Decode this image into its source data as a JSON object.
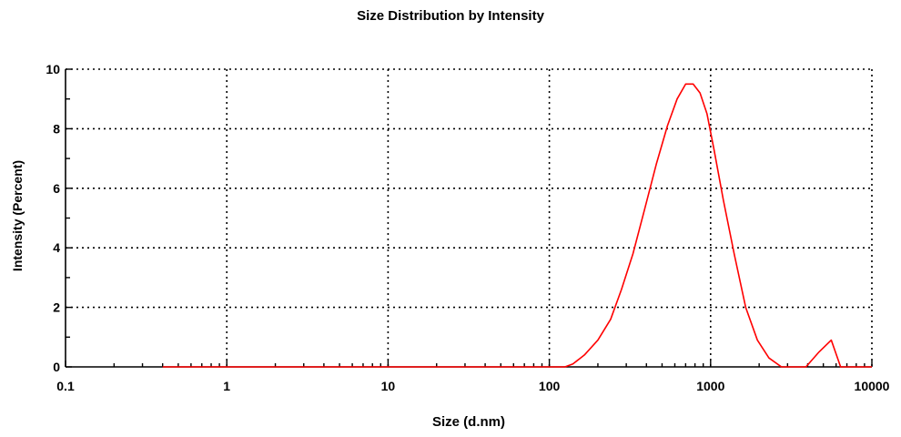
{
  "chart_data": {
    "type": "line",
    "title": "Size Distribution by Intensity",
    "xlabel": "Size (d.nm)",
    "ylabel": "Intensity (Percent)",
    "xscale": "log",
    "xlim": [
      0.1,
      10000
    ],
    "ylim": [
      0,
      10
    ],
    "x_ticks": [
      0.1,
      1,
      10,
      100,
      1000,
      10000
    ],
    "x_tick_labels": [
      "0.1",
      "1",
      "10",
      "100",
      "1000",
      "10000"
    ],
    "y_ticks": [
      0,
      2,
      4,
      6,
      8,
      10
    ],
    "y_tick_labels": [
      "0",
      "2",
      "4",
      "6",
      "8",
      "10"
    ],
    "grid": true,
    "legend": "none",
    "series": [
      {
        "color": "#ff0000",
        "points": [
          [
            0.4,
            0.0
          ],
          [
            1,
            0.0
          ],
          [
            10,
            0.0
          ],
          [
            100,
            0.0
          ],
          [
            125,
            0.0
          ],
          [
            140,
            0.1
          ],
          [
            165,
            0.4
          ],
          [
            200,
            0.9
          ],
          [
            240,
            1.6
          ],
          [
            280,
            2.6
          ],
          [
            330,
            3.8
          ],
          [
            390,
            5.3
          ],
          [
            460,
            6.8
          ],
          [
            540,
            8.1
          ],
          [
            620,
            9.0
          ],
          [
            700,
            9.5
          ],
          [
            780,
            9.5
          ],
          [
            860,
            9.2
          ],
          [
            950,
            8.5
          ],
          [
            1050,
            7.3
          ],
          [
            1200,
            5.6
          ],
          [
            1400,
            3.8
          ],
          [
            1650,
            2.0
          ],
          [
            1950,
            0.9
          ],
          [
            2300,
            0.3
          ],
          [
            2750,
            0.0
          ],
          [
            3400,
            0.0
          ],
          [
            3900,
            0.0
          ],
          [
            4700,
            0.5
          ],
          [
            5600,
            0.9
          ],
          [
            6400,
            0.0
          ],
          [
            8000,
            0.0
          ],
          [
            10000,
            0.0
          ]
        ]
      }
    ]
  }
}
